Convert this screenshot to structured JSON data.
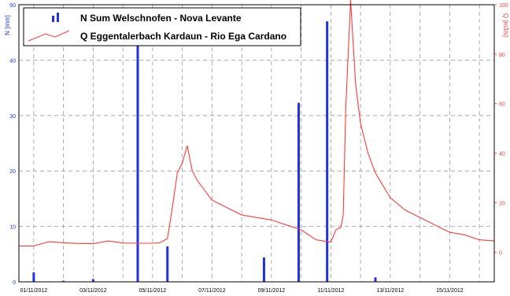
{
  "chart_data": {
    "type": "bar+line",
    "colors": {
      "bars": "#2233dd",
      "line": "#ff3b3b",
      "left_axis": "#2233dd",
      "right_axis": "#ff3b3b",
      "grid": "#999999"
    },
    "xlim": [
      "31/10/2012 12:00",
      "16/11/2012 12:00"
    ],
    "xtick_labels": [
      "01/11/2012",
      "03/11/2012",
      "05/11/2012",
      "07/11/2012",
      "09/11/2012",
      "11/11/2012",
      "13/11/2012",
      "15/11/2012"
    ],
    "left_axis": {
      "label": "N [mm]",
      "ylim": [
        0,
        50
      ],
      "ticks": [
        0,
        10,
        20,
        30,
        40,
        50
      ]
    },
    "right_axis": {
      "label": "Q [m3/s]",
      "ylim": [
        -12,
        100
      ],
      "ticks": [
        0,
        20,
        40,
        60,
        80,
        100
      ]
    },
    "grid": true,
    "legend": {
      "placement": "top-left",
      "entries": [
        "N Sum Welschnofen - Nova Levante",
        "Q Eggentalerbach Kardaun - Rio Ega Cardano"
      ]
    },
    "series": [
      {
        "name": "N Sum Welschnofen - Nova Levante",
        "kind": "bar",
        "axis": "left",
        "x": [
          "01/11/2012 00:00",
          "02/11/2012 00:00",
          "03/11/2012 00:00",
          "04/11/2012 12:00",
          "05/11/2012 12:00",
          "08/11/2012 18:00",
          "09/11/2012 22:00",
          "10/11/2012 21:00",
          "12/11/2012 12:00"
        ],
        "values": [
          1.7,
          0.2,
          0.5,
          45.5,
          6.4,
          4.4,
          32.3,
          47.0,
          0.8
        ]
      },
      {
        "name": "Q Eggentalerbach Kardaun - Rio Ega Cardano",
        "kind": "line",
        "axis": "right",
        "x": [
          "31/10/2012 12:00",
          "01/11/2012 00:00",
          "01/11/2012 12:00",
          "02/11/2012 00:00",
          "02/11/2012 12:00",
          "03/11/2012 00:00",
          "03/11/2012 12:00",
          "04/11/2012 00:00",
          "04/11/2012 12:00",
          "05/11/2012 00:00",
          "05/11/2012 06:00",
          "05/11/2012 12:00",
          "05/11/2012 16:00",
          "05/11/2012 20:00",
          "06/11/2012 00:00",
          "06/11/2012 04:00",
          "06/11/2012 08:00",
          "06/11/2012 12:00",
          "07/11/2012 00:00",
          "07/11/2012 12:00",
          "08/11/2012 00:00",
          "08/11/2012 12:00",
          "09/11/2012 00:00",
          "09/11/2012 12:00",
          "10/11/2012 00:00",
          "10/11/2012 12:00",
          "11/11/2012 00:00",
          "11/11/2012 04:00",
          "11/11/2012 08:00",
          "11/11/2012 10:00",
          "11/11/2012 12:00",
          "11/11/2012 16:00",
          "11/11/2012 20:00",
          "12/11/2012 00:00",
          "12/11/2012 06:00",
          "12/11/2012 12:00",
          "13/11/2012 00:00",
          "13/11/2012 12:00",
          "14/11/2012 00:00",
          "14/11/2012 12:00",
          "15/11/2012 00:00",
          "15/11/2012 12:00",
          "16/11/2012 00:00",
          "16/11/2012 12:00"
        ],
        "values": [
          2.5,
          2.5,
          4.2,
          3.8,
          3.5,
          3.4,
          4.5,
          3.7,
          3.6,
          3.6,
          3.8,
          5.5,
          18,
          32,
          36,
          43,
          33,
          29,
          21,
          18,
          15,
          14,
          13,
          11,
          9,
          5,
          4,
          9,
          10,
          15,
          58,
          102,
          68,
          52,
          40,
          32,
          22,
          17,
          14,
          11,
          8,
          7,
          5,
          4.5
        ]
      }
    ]
  }
}
